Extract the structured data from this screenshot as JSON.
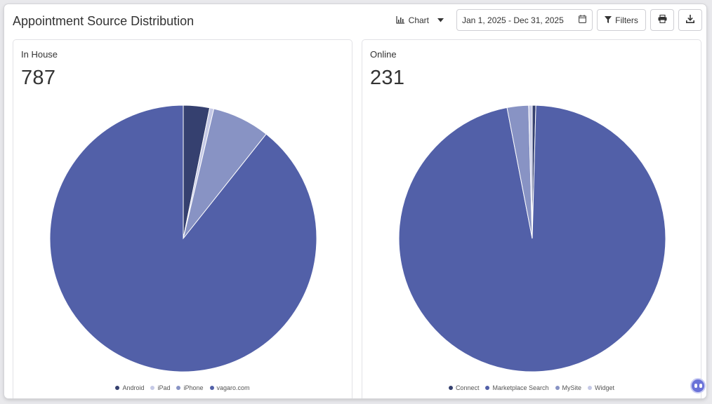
{
  "page": {
    "title": "Appointment Source Distribution"
  },
  "toolbar": {
    "chart_label": "Chart",
    "date_range": "Jan 1, 2025 - Dec 31, 2025",
    "filters_label": "Filters",
    "icons": [
      "bar-chart-icon",
      "caret-down-icon",
      "calendar-icon",
      "filter-icon",
      "print-icon",
      "download-icon"
    ]
  },
  "colors": {
    "android": "#35406f",
    "ipad": "#c5c9e6",
    "iphone": "#8893c4",
    "vagaro": "#5260a8",
    "connect": "#35406f",
    "marketplace": "#5260a8",
    "mysite": "#8893c4",
    "widget": "#c5c9e6"
  },
  "cards": [
    {
      "title": "In House",
      "value": "787"
    },
    {
      "title": "Online",
      "value": "231"
    }
  ],
  "chart_data": [
    {
      "type": "pie",
      "title": "In House",
      "categories": [
        "Android",
        "iPad",
        "iPhone",
        "vagaro.com"
      ],
      "values": [
        25,
        4,
        55,
        703
      ],
      "colors": [
        "#35406f",
        "#c5c9e6",
        "#8893c4",
        "#5260a8"
      ],
      "legend": "bottom"
    },
    {
      "type": "pie",
      "title": "Online",
      "categories": [
        "Connect",
        "Marketplace Search",
        "MySite",
        "Widget"
      ],
      "values": [
        1,
        223,
        6,
        1
      ],
      "colors": [
        "#35406f",
        "#5260a8",
        "#8893c4",
        "#c5c9e6"
      ],
      "order": [
        "Connect",
        "Marketplace Search",
        "MySite",
        "Widget"
      ],
      "legend": "bottom"
    }
  ]
}
